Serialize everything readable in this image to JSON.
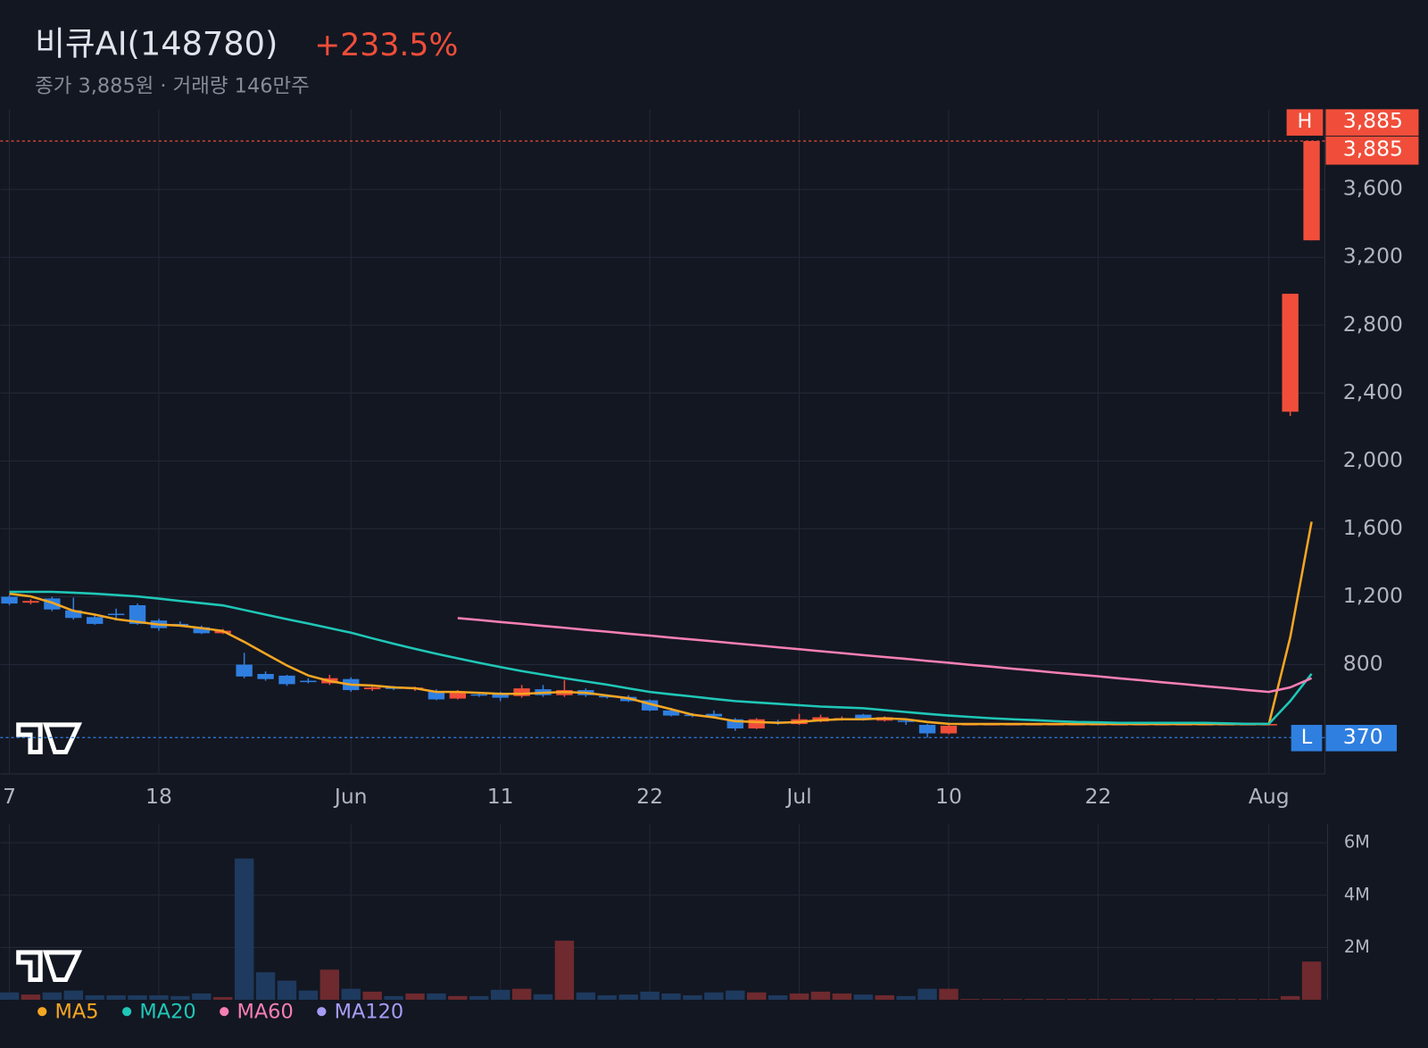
{
  "chart_data": {
    "type": "candlestick",
    "title": "비큐AI(148780)",
    "change": "+233.5%",
    "subtitle": "종가 3,885원 · 거래량 146만주",
    "categories": [
      "7",
      null,
      null,
      null,
      null,
      null,
      null,
      "18",
      null,
      null,
      null,
      null,
      null,
      null,
      null,
      null,
      "Jun",
      null,
      null,
      null,
      null,
      null,
      null,
      "11",
      null,
      null,
      null,
      null,
      null,
      null,
      "22",
      null,
      null,
      null,
      null,
      null,
      null,
      "Jul",
      null,
      null,
      null,
      null,
      null,
      null,
      "10",
      null,
      null,
      null,
      null,
      null,
      null,
      "22",
      null,
      null,
      null,
      null,
      null,
      null,
      null,
      "Aug",
      null,
      null
    ],
    "open": [
      1200,
      1165,
      1190,
      1120,
      1080,
      1100,
      1150,
      1060,
      1040,
      1020,
      985,
      800,
      745,
      735,
      705,
      690,
      715,
      655,
      665,
      655,
      640,
      600,
      625,
      625,
      615,
      655,
      620,
      650,
      615,
      610,
      590,
      530,
      505,
      510,
      478,
      424,
      465,
      450,
      465,
      480,
      505,
      470,
      470,
      445,
      395,
      450,
      450,
      450,
      450,
      450,
      450,
      450,
      450,
      450,
      450,
      450,
      450,
      450,
      450,
      450,
      2290,
      3300
    ],
    "high": [
      1210,
      1185,
      1200,
      1195,
      1100,
      1130,
      1160,
      1070,
      1055,
      1030,
      1010,
      870,
      760,
      740,
      720,
      740,
      725,
      675,
      675,
      670,
      655,
      650,
      640,
      640,
      680,
      680,
      710,
      660,
      625,
      620,
      595,
      545,
      515,
      530,
      485,
      485,
      475,
      510,
      505,
      495,
      510,
      495,
      480,
      450,
      445,
      450,
      450,
      450,
      450,
      450,
      450,
      450,
      450,
      450,
      450,
      450,
      450,
      450,
      450,
      450,
      2985,
      3885
    ],
    "low": [
      1150,
      1155,
      1115,
      1065,
      1035,
      1060,
      1035,
      1000,
      1025,
      980,
      980,
      720,
      705,
      675,
      690,
      680,
      640,
      645,
      650,
      645,
      590,
      595,
      610,
      585,
      605,
      610,
      610,
      610,
      600,
      580,
      525,
      495,
      490,
      490,
      410,
      420,
      445,
      445,
      460,
      470,
      470,
      465,
      445,
      370,
      390,
      450,
      450,
      450,
      450,
      450,
      450,
      450,
      450,
      450,
      450,
      450,
      450,
      450,
      450,
      450,
      2265,
      3300
    ],
    "close": [
      1160,
      1175,
      1125,
      1075,
      1040,
      1095,
      1040,
      1015,
      1035,
      985,
      1000,
      730,
      715,
      685,
      700,
      720,
      650,
      665,
      660,
      665,
      595,
      640,
      620,
      605,
      660,
      620,
      650,
      620,
      610,
      585,
      530,
      500,
      500,
      495,
      424,
      478,
      460,
      478,
      490,
      485,
      478,
      490,
      465,
      395,
      440,
      450,
      450,
      450,
      450,
      450,
      450,
      450,
      450,
      450,
      450,
      450,
      450,
      450,
      450,
      450,
      2985,
      3885
    ],
    "up_color": "#f04e3a",
    "down_color": "#2f7fe0",
    "ylim": [
      156,
      4072
    ],
    "yticks": [
      800,
      {
        "value": 1200,
        "label": "1,200"
      },
      {
        "value": 1600,
        "label": "1,600"
      },
      {
        "value": 2000,
        "label": "2,000"
      },
      {
        "value": 2400,
        "label": "2,400"
      },
      {
        "value": 2800,
        "label": "2,800"
      },
      {
        "value": 3200,
        "label": "3,200"
      },
      {
        "value": 3600,
        "label": "3,600"
      }
    ],
    "grid": true,
    "series": [
      {
        "name": "MA5",
        "color": "#f5a623",
        "values": [
          1218,
          1202,
          1165,
          1117,
          1095,
          1068,
          1052,
          1036,
          1030,
          1015,
          998,
          934,
          864,
          795,
          736,
          703,
          682,
          677,
          666,
          661,
          639,
          639,
          634,
          628,
          628,
          634,
          639,
          634,
          618,
          602,
          569,
          537,
          505,
          489,
          467,
          462,
          457,
          462,
          473,
          478,
          478,
          484,
          478,
          462,
          451,
          450,
          450,
          450,
          450,
          450,
          450,
          450,
          450,
          450,
          450,
          450,
          450,
          450,
          450,
          450,
          961,
          1642
        ]
      },
      {
        "name": "MA20",
        "color": "#1fc7b7",
        "values": [
          1229,
          1229,
          1229,
          1224,
          1218,
          1210,
          1202,
          1189,
          1175,
          1162,
          1149,
          1122,
          1095,
          1068,
          1042,
          1015,
          988,
          955,
          923,
          893,
          864,
          837,
          811,
          786,
          762,
          741,
          720,
          701,
          682,
          660,
          639,
          625,
          612,
          598,
          585,
          577,
          569,
          561,
          553,
          548,
          543,
          532,
          521,
          510,
          500,
          492,
          484,
          478,
          473,
          467,
          462,
          460,
          457,
          457,
          457,
          457,
          457,
          454,
          451,
          451,
          585,
          746
        ]
      },
      {
        "name": "MA60",
        "color": "#f77fb5",
        "values": [
          null,
          null,
          null,
          null,
          null,
          null,
          null,
          null,
          null,
          null,
          null,
          null,
          null,
          null,
          null,
          null,
          null,
          null,
          null,
          null,
          null,
          1074,
          1063,
          1051,
          1040,
          1028,
          1017,
          1005,
          994,
          982,
          971,
          959,
          948,
          937,
          925,
          914,
          902,
          891,
          879,
          868,
          856,
          845,
          834,
          822,
          811,
          799,
          788,
          776,
          765,
          753,
          742,
          731,
          719,
          708,
          696,
          685,
          673,
          662,
          650,
          639,
          666,
          720
        ]
      },
      {
        "name": "MA120",
        "color": "#a79cf5"
      }
    ],
    "high_marker": {
      "tag": "H",
      "value": 3885,
      "label": "3,885"
    },
    "low_marker": {
      "tag": "L",
      "value": 370,
      "label": "370"
    },
    "last_price": {
      "value": 3885,
      "label": "3,885"
    },
    "volume": {
      "values": [
        280000,
        200000,
        280000,
        350000,
        170000,
        170000,
        170000,
        170000,
        140000,
        240000,
        100000,
        5400000,
        1050000,
        730000,
        350000,
        1150000,
        420000,
        310000,
        140000,
        240000,
        240000,
        140000,
        140000,
        380000,
        420000,
        210000,
        2260000,
        280000,
        170000,
        200000,
        310000,
        240000,
        170000,
        280000,
        350000,
        280000,
        170000,
        240000,
        310000,
        240000,
        200000,
        170000,
        140000,
        420000,
        420000,
        30000,
        30000,
        30000,
        30000,
        30000,
        30000,
        30000,
        30000,
        30000,
        30000,
        30000,
        30000,
        30000,
        30000,
        30000,
        140000,
        1460000
      ],
      "up_color": "#6e2a2e",
      "down_color": "#1e3a5f",
      "ylim": [
        0,
        6720000
      ],
      "yticks": [
        {
          "value": 2000000,
          "label": "2M"
        },
        {
          "value": 4000000,
          "label": "4M"
        },
        {
          "value": 6000000,
          "label": "6M"
        }
      ]
    }
  }
}
